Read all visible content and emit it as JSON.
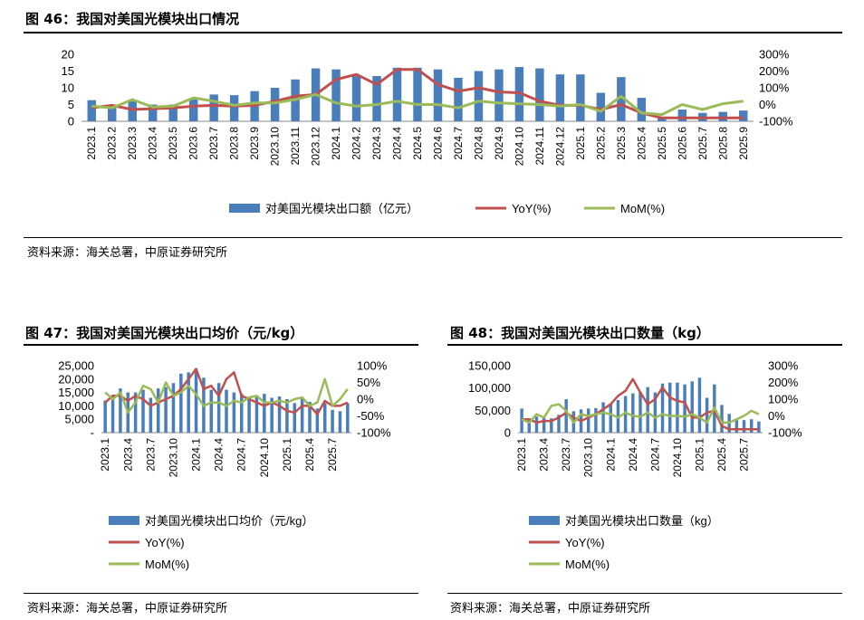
{
  "fig46": {
    "title": "图 46：我国对美国光模块出口情况",
    "source": "资料来源：海关总署，中原证券研究所"
  },
  "fig47": {
    "title": "图 47：我国对美国光模块出口均价（元/kg）",
    "source": "资料来源：海关总署，中原证券研究所"
  },
  "fig48": {
    "title": "图 48：我国对美国光模块出口数量（kg）",
    "source": "资料来源：海关总署，中原证券研究所"
  },
  "colors": {
    "bar": "#4a7ebb",
    "yoy": "#c0504d",
    "mom": "#9bbb59",
    "axis": "#888888",
    "text": "#000000"
  },
  "chart_data": [
    {
      "id": "fig46",
      "type": "bar",
      "categories": [
        "2023.1",
        "2023.2",
        "2023.3",
        "2023.4",
        "2023.5",
        "2023.6",
        "2023.7",
        "2023.8",
        "2023.9",
        "2023.10",
        "2023.11",
        "2023.12",
        "2024.1",
        "2024.2",
        "2024.3",
        "2024.4",
        "2024.5",
        "2024.6",
        "2024.7",
        "2024.8",
        "2024.9",
        "2024.10",
        "2024.11",
        "2024.12",
        "2025.1",
        "2025.2",
        "2025.3",
        "2025.4",
        "2025.5",
        "2025.6",
        "2025.7",
        "2025.8",
        "2025.9"
      ],
      "series": [
        {
          "name": "对美国光模块出口额（亿元）",
          "kind": "bar",
          "axis": "left",
          "values": [
            6.3,
            4.5,
            6.0,
            5.0,
            5.0,
            6.5,
            8.0,
            7.8,
            9.0,
            10.0,
            12.5,
            15.8,
            15.5,
            13.5,
            13.5,
            16.0,
            16.0,
            15.5,
            13.0,
            15.0,
            15.5,
            16.2,
            15.8,
            14.0,
            14.0,
            8.5,
            13.2,
            7.0,
            1.0,
            3.5,
            2.5,
            2.8,
            3.2
          ]
        },
        {
          "name": "YoY(%)",
          "kind": "line",
          "axis": "right",
          "values": [
            -20,
            -5,
            -30,
            -25,
            -20,
            -10,
            -5,
            -10,
            -5,
            20,
            50,
            60,
            150,
            180,
            120,
            210,
            210,
            120,
            80,
            100,
            75,
            70,
            20,
            -5,
            -5,
            -30,
            0,
            -50,
            -80,
            -80,
            -80,
            -80,
            -80
          ]
        },
        {
          "name": "MoM(%)",
          "kind": "line",
          "axis": "right",
          "values": [
            -10,
            -20,
            30,
            -15,
            -10,
            40,
            20,
            -5,
            10,
            10,
            30,
            60,
            10,
            -10,
            0,
            20,
            0,
            0,
            -20,
            20,
            10,
            5,
            0,
            -10,
            0,
            -40,
            50,
            -50,
            -60,
            0,
            -30,
            5,
            20
          ]
        }
      ],
      "left_axis": {
        "min": 0,
        "max": 20,
        "ticks": [
          "0",
          "5",
          "10",
          "15",
          "20"
        ]
      },
      "right_axis": {
        "min": -100,
        "max": 300,
        "ticks": [
          "-100%",
          "0%",
          "100%",
          "200%",
          "300%"
        ]
      },
      "x_tick_labels": [
        "2023.1",
        "2023.2",
        "2023.3",
        "2023.4",
        "2023.5",
        "2023.6",
        "2023.7",
        "2023.8",
        "2023.9",
        "2023.10",
        "2023.11",
        "2023.12",
        "2024.1",
        "2024.2",
        "2024.3",
        "2024.4",
        "2024.5",
        "2024.6",
        "2024.7",
        "2024.8",
        "2024.9",
        "2024.10",
        "2024.11",
        "2024.12",
        "2025.1",
        "2025.2",
        "2025.3",
        "2025.4",
        "2025.5",
        "2025.6",
        "2025.7",
        "2025.8",
        "2025.9"
      ],
      "legend": [
        "对美国光模块出口额（亿元）",
        "YoY(%)",
        "MoM(%)"
      ]
    },
    {
      "id": "fig47",
      "type": "bar",
      "categories": [
        "2023.1",
        "2023.2",
        "2023.3",
        "2023.4",
        "2023.5",
        "2023.6",
        "2023.7",
        "2023.8",
        "2023.9",
        "2023.10",
        "2023.11",
        "2023.12",
        "2024.1",
        "2024.2",
        "2024.3",
        "2024.4",
        "2024.5",
        "2024.6",
        "2024.7",
        "2024.8",
        "2024.9",
        "2024.10",
        "2024.11",
        "2024.12",
        "2025.1",
        "2025.2",
        "2025.3",
        "2025.4",
        "2025.5",
        "2025.6",
        "2025.7",
        "2025.8",
        "2025.9"
      ],
      "series": [
        {
          "name": "对美国光模块出口均价（元/kg）",
          "kind": "bar",
          "axis": "left",
          "values": [
            12000,
            14000,
            16500,
            15000,
            15000,
            16000,
            13000,
            16500,
            17000,
            18500,
            22000,
            22500,
            24000,
            20500,
            16000,
            18500,
            16000,
            15000,
            14500,
            13500,
            14000,
            14500,
            13000,
            13500,
            12500,
            11000,
            12500,
            11500,
            9000,
            11000,
            8500,
            8000,
            11000
          ]
        },
        {
          "name": "YoY(%)",
          "kind": "line",
          "axis": "right",
          "values": [
            -10,
            10,
            10,
            -5,
            10,
            0,
            -20,
            -10,
            0,
            10,
            30,
            60,
            90,
            30,
            40,
            10,
            60,
            80,
            10,
            0,
            -10,
            -20,
            -10,
            -20,
            -35,
            -40,
            -20,
            -20,
            -45,
            -5,
            -20,
            -20,
            -10
          ]
        },
        {
          "name": "MoM(%)",
          "kind": "line",
          "axis": "right",
          "values": [
            20,
            0,
            20,
            -40,
            -10,
            40,
            30,
            -10,
            50,
            10,
            20,
            40,
            15,
            -20,
            -10,
            -10,
            -20,
            -5,
            -10,
            5,
            10,
            -10,
            -10,
            -5,
            -10,
            0,
            5,
            -20,
            -10,
            60,
            -20,
            0,
            30
          ]
        }
      ],
      "left_axis": {
        "min": 0,
        "max": 25000,
        "ticks": [
          "-",
          "5,000",
          "10,000",
          "15,000",
          "20,000",
          "25,000"
        ]
      },
      "right_axis": {
        "min": -100,
        "max": 100,
        "ticks": [
          "-100%",
          "-50%",
          "0%",
          "50%",
          "100%"
        ]
      },
      "x_tick_labels": [
        "2023.1",
        "2023.4",
        "2023.7",
        "2023.10",
        "2024.1",
        "2024.4",
        "2024.7",
        "2024.10",
        "2025.1",
        "2025.4",
        "2025.7"
      ],
      "legend": [
        "对美国光模块出口均价（元/kg）",
        "YoY(%)",
        "MoM(%)"
      ]
    },
    {
      "id": "fig48",
      "type": "bar",
      "categories": [
        "2023.1",
        "2023.2",
        "2023.3",
        "2023.4",
        "2023.5",
        "2023.6",
        "2023.7",
        "2023.8",
        "2023.9",
        "2023.10",
        "2023.11",
        "2023.12",
        "2024.1",
        "2024.2",
        "2024.3",
        "2024.4",
        "2024.5",
        "2024.6",
        "2024.7",
        "2024.8",
        "2024.9",
        "2024.10",
        "2024.11",
        "2024.12",
        "2025.1",
        "2025.2",
        "2025.3",
        "2025.4",
        "2025.5",
        "2025.6",
        "2025.7",
        "2025.8",
        "2025.9"
      ],
      "series": [
        {
          "name": "对美国光模块出口数量（kg）",
          "kind": "bar",
          "axis": "left",
          "values": [
            54000,
            32000,
            36000,
            33000,
            32000,
            40000,
            75000,
            48000,
            52000,
            54000,
            55000,
            68000,
            65000,
            73000,
            82000,
            88000,
            90000,
            102000,
            90000,
            110000,
            112000,
            112000,
            108000,
            115000,
            123000,
            78000,
            108000,
            62000,
            42000,
            30000,
            28000,
            30000,
            25000
          ]
        },
        {
          "name": "YoY(%)",
          "kind": "line",
          "axis": "right",
          "values": [
            -20,
            -20,
            -40,
            -30,
            -30,
            -10,
            20,
            -10,
            -30,
            -10,
            10,
            40,
            70,
            120,
            150,
            220,
            140,
            70,
            100,
            170,
            110,
            90,
            80,
            -10,
            -10,
            20,
            30,
            -60,
            -80,
            -80,
            -80,
            -80,
            -80
          ]
        },
        {
          "name": "MoM(%)",
          "kind": "line",
          "axis": "right",
          "values": [
            -20,
            -40,
            10,
            -10,
            60,
            70,
            30,
            -40,
            10,
            0,
            10,
            20,
            10,
            -10,
            20,
            0,
            -5,
            20,
            -10,
            10,
            0,
            0,
            -5,
            10,
            -10,
            -40,
            50,
            -40,
            -40,
            -20,
            0,
            30,
            10
          ]
        }
      ],
      "left_axis": {
        "min": 0,
        "max": 150000,
        "ticks": [
          "0",
          "50,000",
          "100,000",
          "150,000"
        ]
      },
      "right_axis": {
        "min": -100,
        "max": 300,
        "ticks": [
          "-100%",
          "0%",
          "100%",
          "200%",
          "300%"
        ]
      },
      "x_tick_labels": [
        "2023.1",
        "2023.4",
        "2023.7",
        "2023.10",
        "2024.1",
        "2024.4",
        "2024.7",
        "2024.10",
        "2025.1",
        "2025.4",
        "2025.7"
      ],
      "legend": [
        "对美国光模块出口数量（kg）",
        "YoY(%)",
        "MoM(%)"
      ]
    }
  ]
}
